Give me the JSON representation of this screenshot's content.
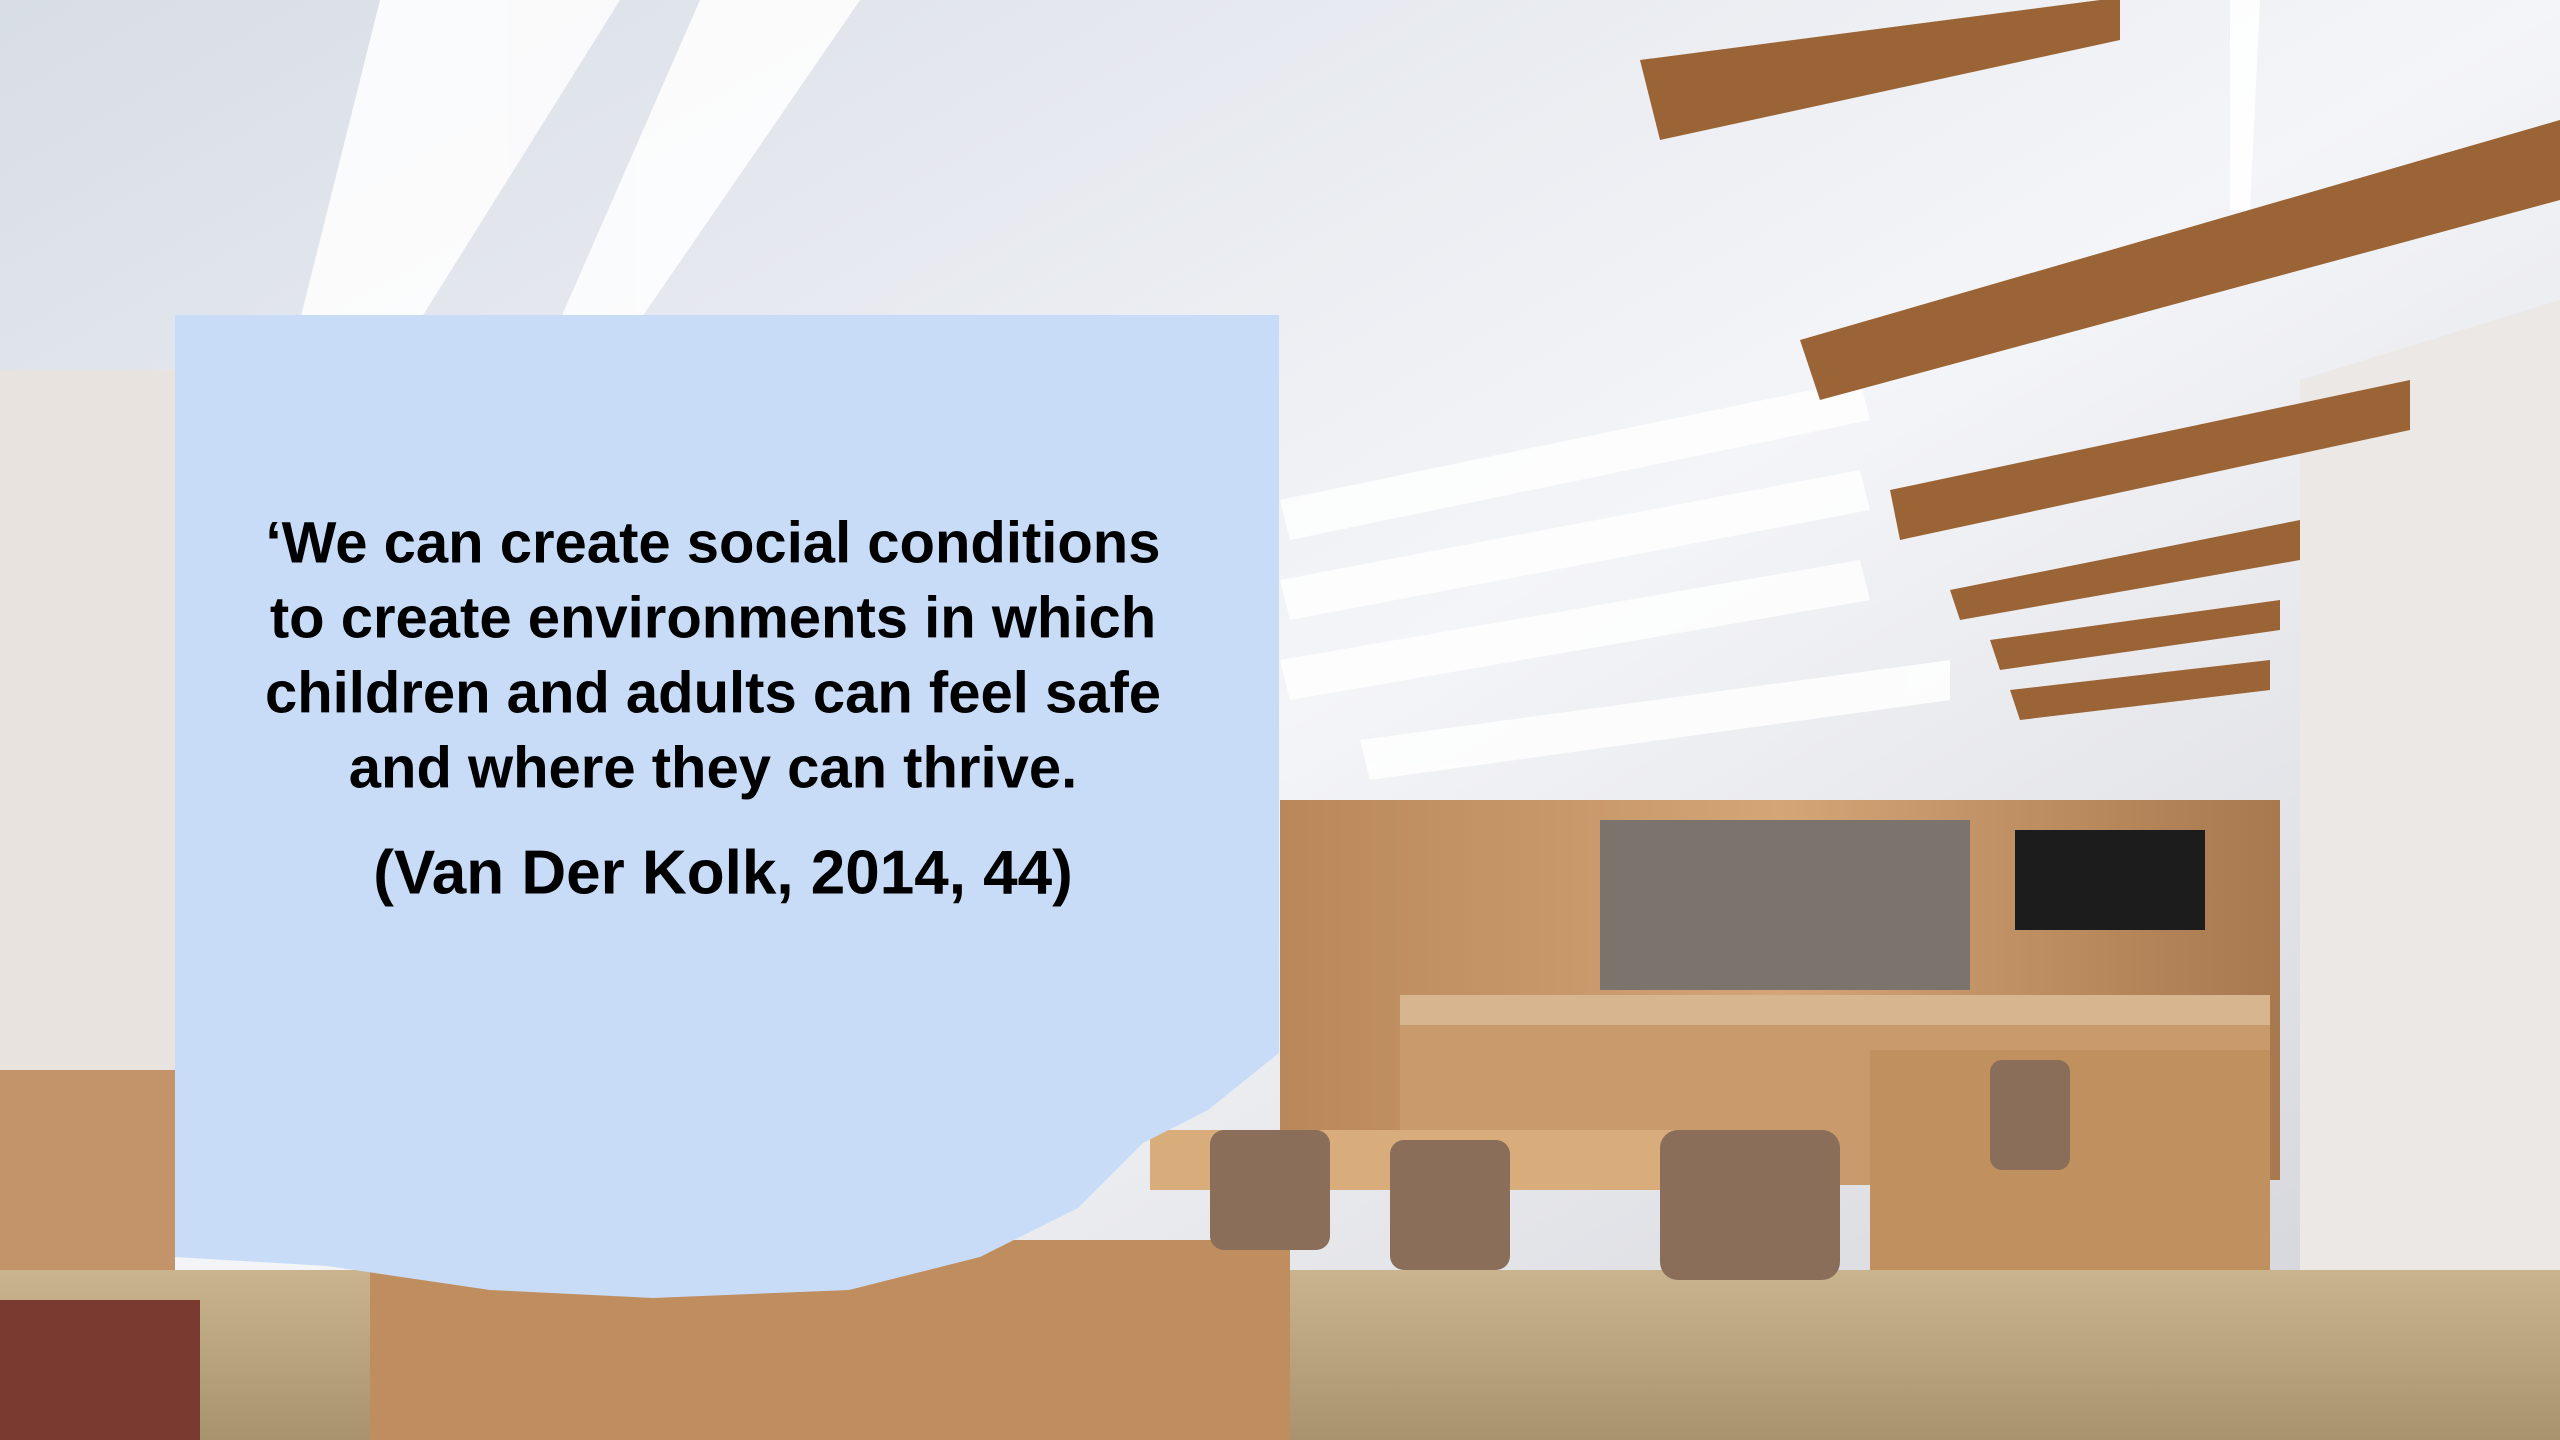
{
  "quote": {
    "lines": [
      "‘We can create social conditions",
      "to create environments in which",
      "children and adults can feel safe",
      "and where they can thrive."
    ],
    "citation": "(Van Der Kolk, 2014, 44)"
  }
}
